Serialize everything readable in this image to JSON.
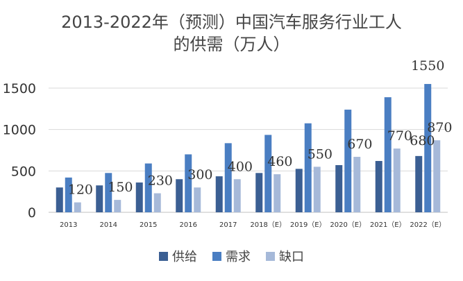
{
  "chart_data": {
    "type": "bar",
    "title_lines": [
      "2013-2022年（预测）中国汽车服务行业工人",
      "的供需（万人）"
    ],
    "categories": [
      "2013",
      "2014",
      "2015",
      "2016",
      "2017",
      "2018（E）",
      "2019（E）",
      "2020（E）",
      "2021（E）",
      "2022（E）"
    ],
    "series": [
      {
        "name": "供给",
        "color": "#3B5F93",
        "values": [
          300,
          325,
          360,
          400,
          435,
          475,
          525,
          570,
          620,
          680
        ],
        "labels": [
          "",
          "",
          "",
          "",
          "",
          "",
          "",
          "",
          "",
          "680"
        ]
      },
      {
        "name": "需求",
        "color": "#4A7EC2",
        "values": [
          420,
          475,
          590,
          700,
          835,
          935,
          1075,
          1240,
          1390,
          1550
        ],
        "labels": [
          "",
          "",
          "",
          "",
          "",
          "",
          "",
          "",
          "",
          "1550"
        ]
      },
      {
        "name": "缺口",
        "color": "#A6B9D9",
        "values": [
          120,
          150,
          230,
          300,
          400,
          460,
          550,
          670,
          770,
          870
        ],
        "labels": [
          "120",
          "150",
          "230",
          "300",
          "400",
          "460",
          "550",
          "670",
          "770",
          "870"
        ]
      }
    ],
    "yticks": [
      0,
      500,
      1000,
      1500
    ],
    "ylim": [
      0,
      1500
    ],
    "grid": true,
    "legend_position": "bottom"
  }
}
